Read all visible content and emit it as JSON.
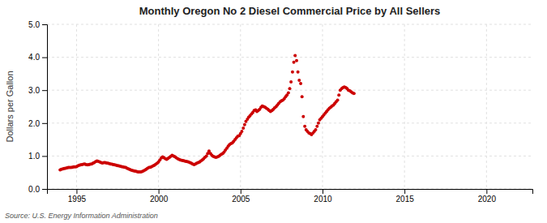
{
  "chart_data": {
    "type": "scatter",
    "title": "Monthly Oregon No 2 Diesel Commercial Price by All Sellers",
    "ylabel": "Dollars per Gallon",
    "annotations": [
      "Source: U.S. Energy Information Administration"
    ],
    "color": "#cc0000",
    "grid": true,
    "xlim": [
      1993.2,
      2022.8
    ],
    "ylim": [
      0.0,
      5.0
    ],
    "xticks": [
      1995,
      2000,
      2005,
      2010,
      2015,
      2020
    ],
    "yticks": [
      {
        "value": 0.0,
        "label": "0.0"
      },
      {
        "value": 1.0,
        "label": "1.0"
      },
      {
        "value": 2.0,
        "label": "2.0"
      },
      {
        "value": 3.0,
        "label": "3.0"
      },
      {
        "value": 4.0,
        "label": "4.0"
      },
      {
        "value": 5.0,
        "label": "5.0"
      }
    ],
    "x": [
      1994.0,
      1994.08,
      1994.17,
      1994.25,
      1994.33,
      1994.42,
      1994.5,
      1994.58,
      1994.67,
      1994.75,
      1994.83,
      1994.92,
      1995.0,
      1995.08,
      1995.17,
      1995.25,
      1995.33,
      1995.42,
      1995.5,
      1995.58,
      1995.67,
      1995.75,
      1995.83,
      1995.92,
      1996.0,
      1996.08,
      1996.17,
      1996.25,
      1996.33,
      1996.42,
      1996.5,
      1996.58,
      1996.67,
      1996.75,
      1996.83,
      1996.92,
      1997.0,
      1997.08,
      1997.17,
      1997.25,
      1997.33,
      1997.42,
      1997.5,
      1997.58,
      1997.67,
      1997.75,
      1997.83,
      1997.92,
      1998.0,
      1998.08,
      1998.17,
      1998.25,
      1998.33,
      1998.42,
      1998.5,
      1998.58,
      1998.67,
      1998.75,
      1998.83,
      1998.92,
      1999.0,
      1999.08,
      1999.17,
      1999.25,
      1999.33,
      1999.42,
      1999.5,
      1999.58,
      1999.67,
      1999.75,
      1999.83,
      1999.92,
      2000.0,
      2000.08,
      2000.17,
      2000.25,
      2000.33,
      2000.42,
      2000.5,
      2000.58,
      2000.67,
      2000.75,
      2000.83,
      2000.92,
      2001.0,
      2001.08,
      2001.17,
      2001.25,
      2001.33,
      2001.42,
      2001.5,
      2001.58,
      2001.67,
      2001.75,
      2001.83,
      2001.92,
      2002.0,
      2002.08,
      2002.17,
      2002.25,
      2002.33,
      2002.42,
      2002.5,
      2002.58,
      2002.67,
      2002.75,
      2002.83,
      2002.92,
      2003.0,
      2003.08,
      2003.17,
      2003.25,
      2003.33,
      2003.42,
      2003.5,
      2003.58,
      2003.67,
      2003.75,
      2003.83,
      2003.92,
      2004.0,
      2004.08,
      2004.17,
      2004.25,
      2004.33,
      2004.42,
      2004.5,
      2004.58,
      2004.67,
      2004.75,
      2004.83,
      2004.92,
      2005.0,
      2005.08,
      2005.17,
      2005.25,
      2005.33,
      2005.42,
      2005.5,
      2005.58,
      2005.67,
      2005.75,
      2005.83,
      2005.92,
      2006.0,
      2006.08,
      2006.17,
      2006.25,
      2006.33,
      2006.42,
      2006.5,
      2006.58,
      2006.67,
      2006.75,
      2006.83,
      2006.92,
      2007.0,
      2007.08,
      2007.17,
      2007.25,
      2007.33,
      2007.42,
      2007.5,
      2007.58,
      2007.67,
      2007.75,
      2007.83,
      2007.92,
      2008.0,
      2008.08,
      2008.17,
      2008.25,
      2008.33,
      2008.42,
      2008.5,
      2008.58,
      2008.67,
      2008.75,
      2008.83,
      2008.92,
      2009.0,
      2009.08,
      2009.17,
      2009.25,
      2009.33,
      2009.42,
      2009.5,
      2009.58,
      2009.67,
      2009.75,
      2009.83,
      2009.92,
      2010.0,
      2010.08,
      2010.17,
      2010.25,
      2010.33,
      2010.42,
      2010.5,
      2010.58,
      2010.67,
      2010.75,
      2010.83,
      2010.92,
      2011.0,
      2011.08,
      2011.17,
      2011.25,
      2011.33,
      2011.42,
      2011.5,
      2011.58,
      2011.67,
      2011.75,
      2011.83,
      2011.92
    ],
    "values": [
      0.58,
      0.6,
      0.61,
      0.62,
      0.63,
      0.64,
      0.65,
      0.65,
      0.65,
      0.66,
      0.67,
      0.67,
      0.68,
      0.7,
      0.72,
      0.73,
      0.74,
      0.75,
      0.76,
      0.74,
      0.73,
      0.74,
      0.75,
      0.76,
      0.78,
      0.8,
      0.83,
      0.85,
      0.84,
      0.82,
      0.8,
      0.79,
      0.8,
      0.8,
      0.79,
      0.78,
      0.77,
      0.76,
      0.75,
      0.74,
      0.73,
      0.72,
      0.71,
      0.7,
      0.69,
      0.68,
      0.67,
      0.66,
      0.65,
      0.63,
      0.61,
      0.59,
      0.57,
      0.56,
      0.55,
      0.54,
      0.53,
      0.52,
      0.52,
      0.52,
      0.53,
      0.55,
      0.57,
      0.6,
      0.63,
      0.65,
      0.66,
      0.68,
      0.7,
      0.72,
      0.75,
      0.78,
      0.82,
      0.88,
      0.94,
      0.97,
      0.95,
      0.92,
      0.9,
      0.93,
      0.96,
      0.99,
      1.02,
      1.0,
      0.98,
      0.95,
      0.92,
      0.9,
      0.88,
      0.87,
      0.86,
      0.85,
      0.84,
      0.83,
      0.82,
      0.8,
      0.78,
      0.76,
      0.74,
      0.76,
      0.78,
      0.8,
      0.82,
      0.85,
      0.88,
      0.92,
      0.96,
      1.0,
      1.08,
      1.15,
      1.08,
      1.02,
      0.99,
      0.97,
      0.96,
      0.97,
      0.99,
      1.02,
      1.05,
      1.08,
      1.12,
      1.18,
      1.24,
      1.3,
      1.35,
      1.38,
      1.4,
      1.45,
      1.5,
      1.55,
      1.6,
      1.62,
      1.68,
      1.75,
      1.85,
      1.95,
      2.05,
      2.12,
      2.18,
      2.22,
      2.28,
      2.32,
      2.38,
      2.4,
      2.35,
      2.38,
      2.42,
      2.48,
      2.52,
      2.5,
      2.48,
      2.45,
      2.42,
      2.38,
      2.35,
      2.38,
      2.42,
      2.46,
      2.5,
      2.55,
      2.6,
      2.65,
      2.68,
      2.7,
      2.74,
      2.8,
      2.85,
      2.92,
      3.05,
      3.25,
      3.55,
      3.85,
      4.05,
      3.9,
      3.55,
      3.3,
      3.2,
      2.8,
      2.2,
      1.9,
      1.8,
      1.75,
      1.7,
      1.68,
      1.65,
      1.7,
      1.75,
      1.8,
      1.9,
      2.0,
      2.1,
      2.15,
      2.2,
      2.25,
      2.3,
      2.35,
      2.4,
      2.45,
      2.48,
      2.52,
      2.55,
      2.6,
      2.65,
      2.7,
      2.85,
      3.0,
      3.05,
      3.08,
      3.1,
      3.08,
      3.05,
      3.0,
      2.98,
      2.95,
      2.92,
      2.9
    ]
  }
}
